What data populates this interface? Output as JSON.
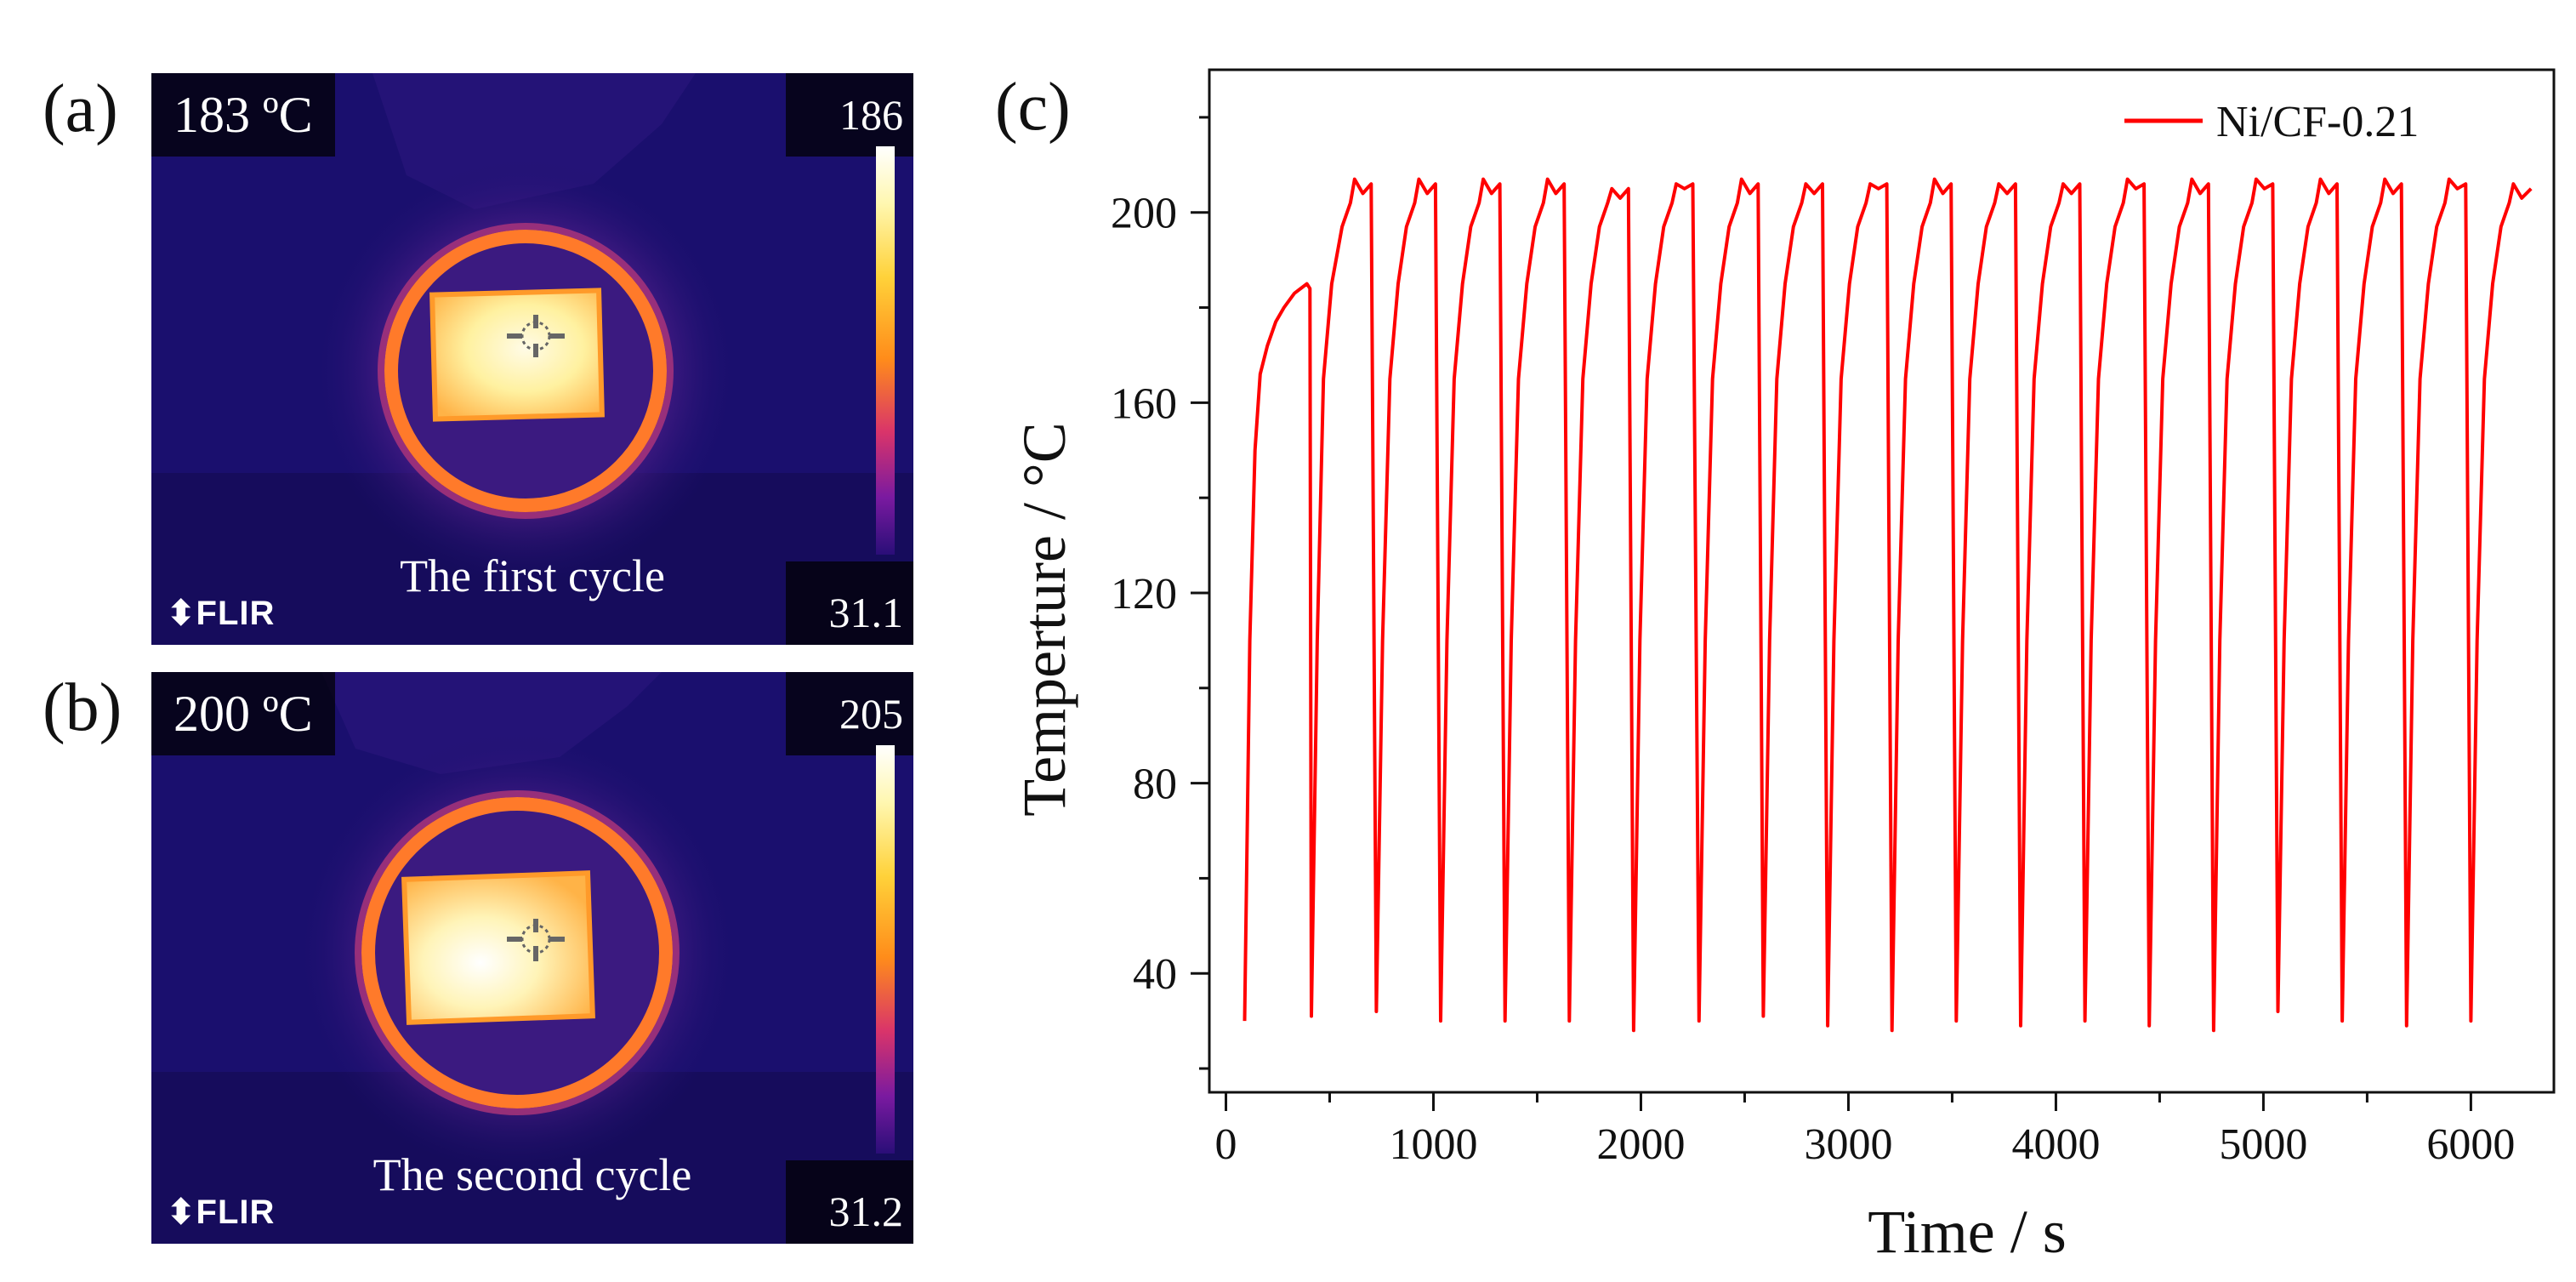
{
  "panels": {
    "a": {
      "letter": "(a)",
      "temperature": "183 ºC",
      "scale_max": "186",
      "scale_min": "31.1",
      "caption": "The first cycle",
      "brand": "FLIR"
    },
    "b": {
      "letter": "(b)",
      "temperature": "200 ºC",
      "scale_max": "205",
      "scale_min": "31.2",
      "caption": "The second cycle",
      "brand": "FLIR"
    },
    "c": {
      "letter": "(c)"
    }
  },
  "colors": {
    "series": "#ff0000",
    "thermal_background": "#1a0f6e",
    "thermal_ring": "#ff7a2a",
    "thermal_hot": "#fff8c8"
  },
  "chart_data": {
    "type": "line",
    "title": "",
    "xlabel": "Time / s",
    "ylabel": "Temperture / °C",
    "xlim": [
      -80,
      6400
    ],
    "ylim": [
      15,
      230
    ],
    "xticks": [
      0,
      1000,
      2000,
      3000,
      4000,
      5000,
      6000
    ],
    "yticks": [
      40,
      80,
      120,
      160,
      200
    ],
    "legend": {
      "position": "top-right"
    },
    "grid": false,
    "series": [
      {
        "name": "Ni/CF-0.21",
        "color": "#ff0000",
        "points": [
          [
            90,
            30
          ],
          [
            115,
            110
          ],
          [
            140,
            150
          ],
          [
            165,
            166
          ],
          [
            200,
            172
          ],
          [
            240,
            177
          ],
          [
            280,
            180
          ],
          [
            330,
            183
          ],
          [
            390,
            185
          ],
          [
            405,
            184
          ],
          [
            412,
            31
          ],
          [
            440,
            110
          ],
          [
            470,
            165
          ],
          [
            510,
            185
          ],
          [
            560,
            197
          ],
          [
            600,
            202
          ],
          [
            620,
            207
          ],
          [
            660,
            204
          ],
          [
            700,
            206
          ],
          [
            725,
            32
          ],
          [
            755,
            110
          ],
          [
            790,
            165
          ],
          [
            830,
            185
          ],
          [
            870,
            197
          ],
          [
            910,
            202
          ],
          [
            930,
            207
          ],
          [
            970,
            204
          ],
          [
            1010,
            206
          ],
          [
            1035,
            30
          ],
          [
            1065,
            110
          ],
          [
            1100,
            165
          ],
          [
            1140,
            185
          ],
          [
            1180,
            197
          ],
          [
            1220,
            202
          ],
          [
            1240,
            207
          ],
          [
            1280,
            204
          ],
          [
            1320,
            206
          ],
          [
            1345,
            30
          ],
          [
            1375,
            110
          ],
          [
            1410,
            165
          ],
          [
            1450,
            185
          ],
          [
            1490,
            197
          ],
          [
            1530,
            202
          ],
          [
            1550,
            207
          ],
          [
            1590,
            204
          ],
          [
            1630,
            206
          ],
          [
            1655,
            30
          ],
          [
            1685,
            110
          ],
          [
            1720,
            165
          ],
          [
            1760,
            185
          ],
          [
            1800,
            197
          ],
          [
            1840,
            202
          ],
          [
            1860,
            205
          ],
          [
            1900,
            203
          ],
          [
            1940,
            205
          ],
          [
            1965,
            28
          ],
          [
            1995,
            110
          ],
          [
            2030,
            165
          ],
          [
            2070,
            185
          ],
          [
            2110,
            197
          ],
          [
            2150,
            202
          ],
          [
            2170,
            206
          ],
          [
            2210,
            205
          ],
          [
            2250,
            206
          ],
          [
            2280,
            30
          ],
          [
            2310,
            110
          ],
          [
            2345,
            165
          ],
          [
            2385,
            185
          ],
          [
            2425,
            197
          ],
          [
            2465,
            202
          ],
          [
            2485,
            207
          ],
          [
            2525,
            204
          ],
          [
            2565,
            206
          ],
          [
            2590,
            31
          ],
          [
            2620,
            110
          ],
          [
            2655,
            165
          ],
          [
            2695,
            185
          ],
          [
            2735,
            197
          ],
          [
            2775,
            202
          ],
          [
            2795,
            206
          ],
          [
            2835,
            204
          ],
          [
            2875,
            206
          ],
          [
            2900,
            29
          ],
          [
            2930,
            110
          ],
          [
            2965,
            165
          ],
          [
            3005,
            185
          ],
          [
            3045,
            197
          ],
          [
            3085,
            202
          ],
          [
            3105,
            206
          ],
          [
            3145,
            205
          ],
          [
            3185,
            206
          ],
          [
            3210,
            28
          ],
          [
            3240,
            110
          ],
          [
            3275,
            165
          ],
          [
            3315,
            185
          ],
          [
            3355,
            197
          ],
          [
            3395,
            202
          ],
          [
            3415,
            207
          ],
          [
            3455,
            204
          ],
          [
            3495,
            206
          ],
          [
            3520,
            30
          ],
          [
            3550,
            110
          ],
          [
            3585,
            165
          ],
          [
            3625,
            185
          ],
          [
            3665,
            197
          ],
          [
            3705,
            202
          ],
          [
            3725,
            206
          ],
          [
            3765,
            204
          ],
          [
            3805,
            206
          ],
          [
            3830,
            29
          ],
          [
            3860,
            110
          ],
          [
            3895,
            165
          ],
          [
            3935,
            185
          ],
          [
            3975,
            197
          ],
          [
            4015,
            202
          ],
          [
            4035,
            206
          ],
          [
            4075,
            204
          ],
          [
            4115,
            206
          ],
          [
            4140,
            30
          ],
          [
            4170,
            110
          ],
          [
            4205,
            165
          ],
          [
            4245,
            185
          ],
          [
            4285,
            197
          ],
          [
            4325,
            202
          ],
          [
            4345,
            207
          ],
          [
            4385,
            205
          ],
          [
            4425,
            206
          ],
          [
            4450,
            29
          ],
          [
            4480,
            110
          ],
          [
            4515,
            165
          ],
          [
            4555,
            185
          ],
          [
            4595,
            197
          ],
          [
            4635,
            202
          ],
          [
            4655,
            207
          ],
          [
            4695,
            204
          ],
          [
            4735,
            206
          ],
          [
            4760,
            28
          ],
          [
            4790,
            110
          ],
          [
            4825,
            165
          ],
          [
            4865,
            185
          ],
          [
            4905,
            197
          ],
          [
            4945,
            202
          ],
          [
            4965,
            207
          ],
          [
            5005,
            205
          ],
          [
            5045,
            206
          ],
          [
            5070,
            32
          ],
          [
            5100,
            110
          ],
          [
            5135,
            165
          ],
          [
            5175,
            185
          ],
          [
            5215,
            197
          ],
          [
            5255,
            202
          ],
          [
            5275,
            207
          ],
          [
            5315,
            204
          ],
          [
            5355,
            206
          ],
          [
            5380,
            30
          ],
          [
            5410,
            110
          ],
          [
            5445,
            165
          ],
          [
            5485,
            185
          ],
          [
            5525,
            197
          ],
          [
            5565,
            202
          ],
          [
            5585,
            207
          ],
          [
            5625,
            204
          ],
          [
            5665,
            206
          ],
          [
            5690,
            29
          ],
          [
            5720,
            110
          ],
          [
            5755,
            165
          ],
          [
            5795,
            185
          ],
          [
            5835,
            197
          ],
          [
            5875,
            202
          ],
          [
            5895,
            207
          ],
          [
            5935,
            205
          ],
          [
            5975,
            206
          ],
          [
            6000,
            30
          ],
          [
            6030,
            110
          ],
          [
            6065,
            165
          ],
          [
            6105,
            185
          ],
          [
            6145,
            197
          ],
          [
            6185,
            202
          ],
          [
            6205,
            206
          ],
          [
            6245,
            203
          ],
          [
            6290,
            205
          ]
        ]
      }
    ]
  }
}
